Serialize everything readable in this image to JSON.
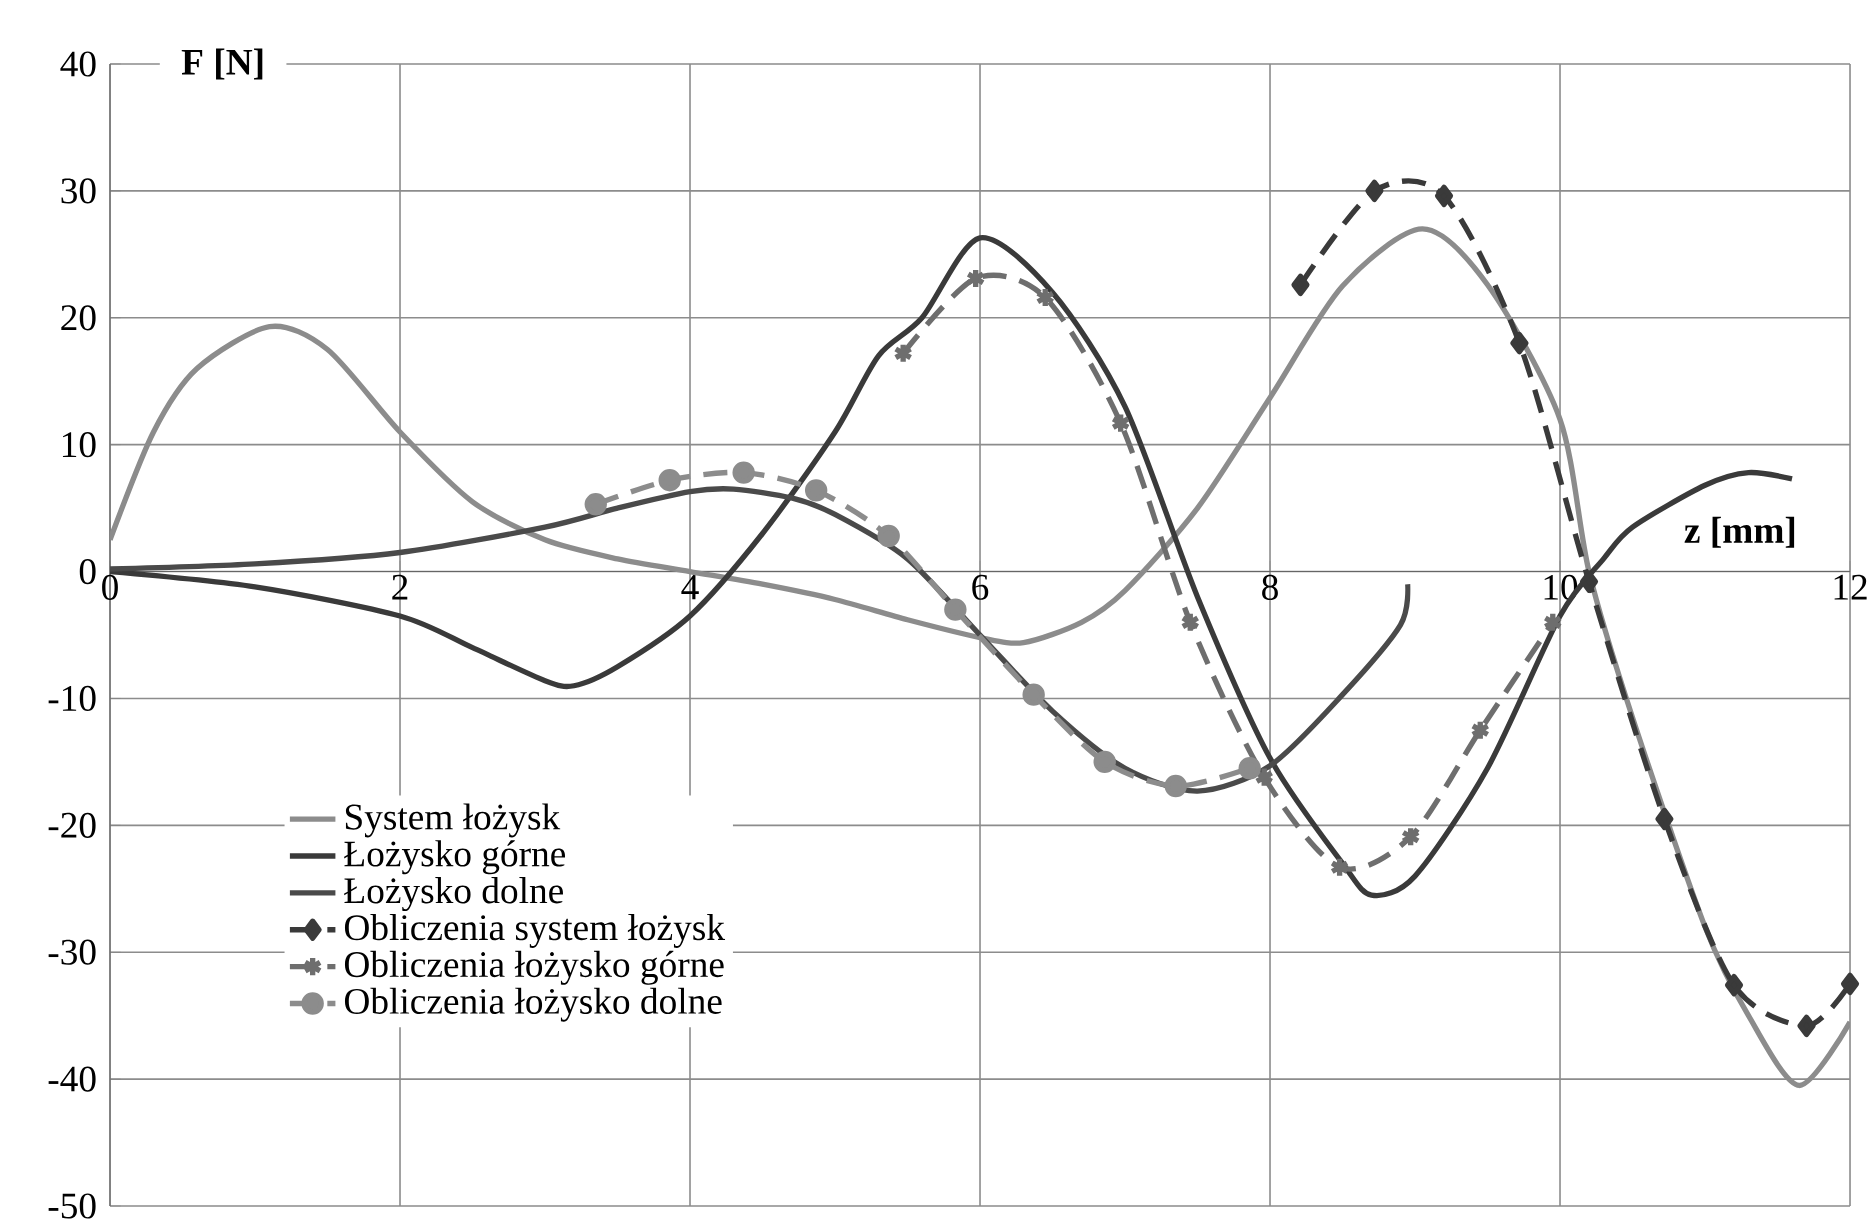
{
  "chart_data": {
    "type": "line",
    "xlabel": "z [mm]",
    "ylabel": "F [N]",
    "xlim": [
      0,
      12
    ],
    "ylim": [
      -50,
      40
    ],
    "xticks": [
      0,
      2,
      4,
      6,
      8,
      10,
      12
    ],
    "yticks": [
      -50,
      -40,
      -30,
      -20,
      -10,
      0,
      10,
      20,
      30,
      40
    ],
    "grid": true,
    "legend": "bottom left",
    "series": [
      {
        "name": "System łożysk",
        "color": "#8c8c8c",
        "marker": "none",
        "line_style": "solid",
        "x": [
          0,
          0.3,
          0.6,
          1.1,
          1.5,
          2,
          2.5,
          3,
          3.5,
          4,
          4.5,
          5,
          5.5,
          6,
          6.3,
          6.7,
          7,
          7.5,
          8,
          8.5,
          9.05,
          9.5,
          10,
          10.2,
          10.5,
          11,
          11.3,
          11.65,
          12
        ],
        "values": [
          2.5,
          11,
          16,
          19.3,
          17.5,
          11,
          5.5,
          2.5,
          1,
          0,
          -1,
          -2.2,
          -3.8,
          -5.2,
          -5.6,
          -4,
          -1.5,
          5,
          13.7,
          22.5,
          27,
          22.6,
          12,
          0,
          -11.5,
          -28,
          -35,
          -40.5,
          -35.5
        ]
      },
      {
        "name": "Łożysko górne",
        "color": "#3a3a3a",
        "marker": "none",
        "line_style": "solid",
        "x": [
          0,
          1,
          2,
          2.5,
          3,
          3.2,
          3.5,
          4,
          4.5,
          5,
          5.3,
          5.6,
          6,
          6.5,
          7,
          7.5,
          8,
          8.5,
          8.7,
          9,
          9.5,
          10,
          10.3,
          10.5,
          11,
          11.3,
          11.6
        ],
        "values": [
          0,
          -1.2,
          -3.5,
          -6,
          -8.6,
          -9,
          -7.5,
          -3.5,
          3,
          11,
          17,
          20,
          26.3,
          22,
          13,
          -2,
          -14.7,
          -23,
          -25.5,
          -24,
          -15.5,
          -3.5,
          1,
          3.5,
          6.8,
          7.8,
          7.3
        ]
      },
      {
        "name": "Łożysko dolne",
        "color": "#4a4a4a",
        "marker": "none",
        "line_style": "solid",
        "x": [
          0,
          1,
          2,
          3,
          3.5,
          4,
          4.3,
          4.7,
          5,
          5.5,
          6,
          6.5,
          7,
          7.5,
          8,
          8.5,
          8.9,
          8.95
        ],
        "values": [
          0.2,
          0.6,
          1.5,
          3.5,
          5,
          6.3,
          6.5,
          5.8,
          4.5,
          1,
          -5,
          -11,
          -15.5,
          -17.3,
          -15.3,
          -9.7,
          -4.2,
          -1
        ]
      },
      {
        "name": "Obliczenia system łożysk",
        "color": "#3a3a3a",
        "marker": "diamond",
        "line_style": "dashed",
        "x": [
          8.21,
          8.72,
          9.2,
          9.72,
          10.2,
          10.72,
          11.2,
          11.7,
          12
        ],
        "values": [
          22.6,
          30,
          29.6,
          18,
          -0.8,
          -19.5,
          -32.6,
          -35.8,
          -32.5
        ]
      },
      {
        "name": "Obliczenia łożysko górne",
        "color": "#6e6e6e",
        "marker": "cross",
        "line_style": "dashed",
        "x": [
          5.47,
          5.97,
          6.45,
          6.97,
          7.45,
          7.96,
          8.48,
          8.97,
          9.45,
          9.95
        ],
        "values": [
          17.2,
          23.1,
          21.6,
          11.7,
          -4,
          -16.2,
          -23.3,
          -20.9,
          -12.5,
          -4
        ]
      },
      {
        "name": "Obliczenia łożysko dolne",
        "color": "#8c8c8c",
        "marker": "circle",
        "line_style": "dashed",
        "x": [
          3.35,
          3.86,
          4.37,
          4.87,
          5.37,
          5.83,
          6.37,
          6.86,
          7.35,
          7.86
        ],
        "values": [
          5.3,
          7.2,
          7.8,
          6.4,
          2.8,
          -3,
          -9.7,
          -15,
          -16.9,
          -15.5
        ]
      }
    ]
  }
}
